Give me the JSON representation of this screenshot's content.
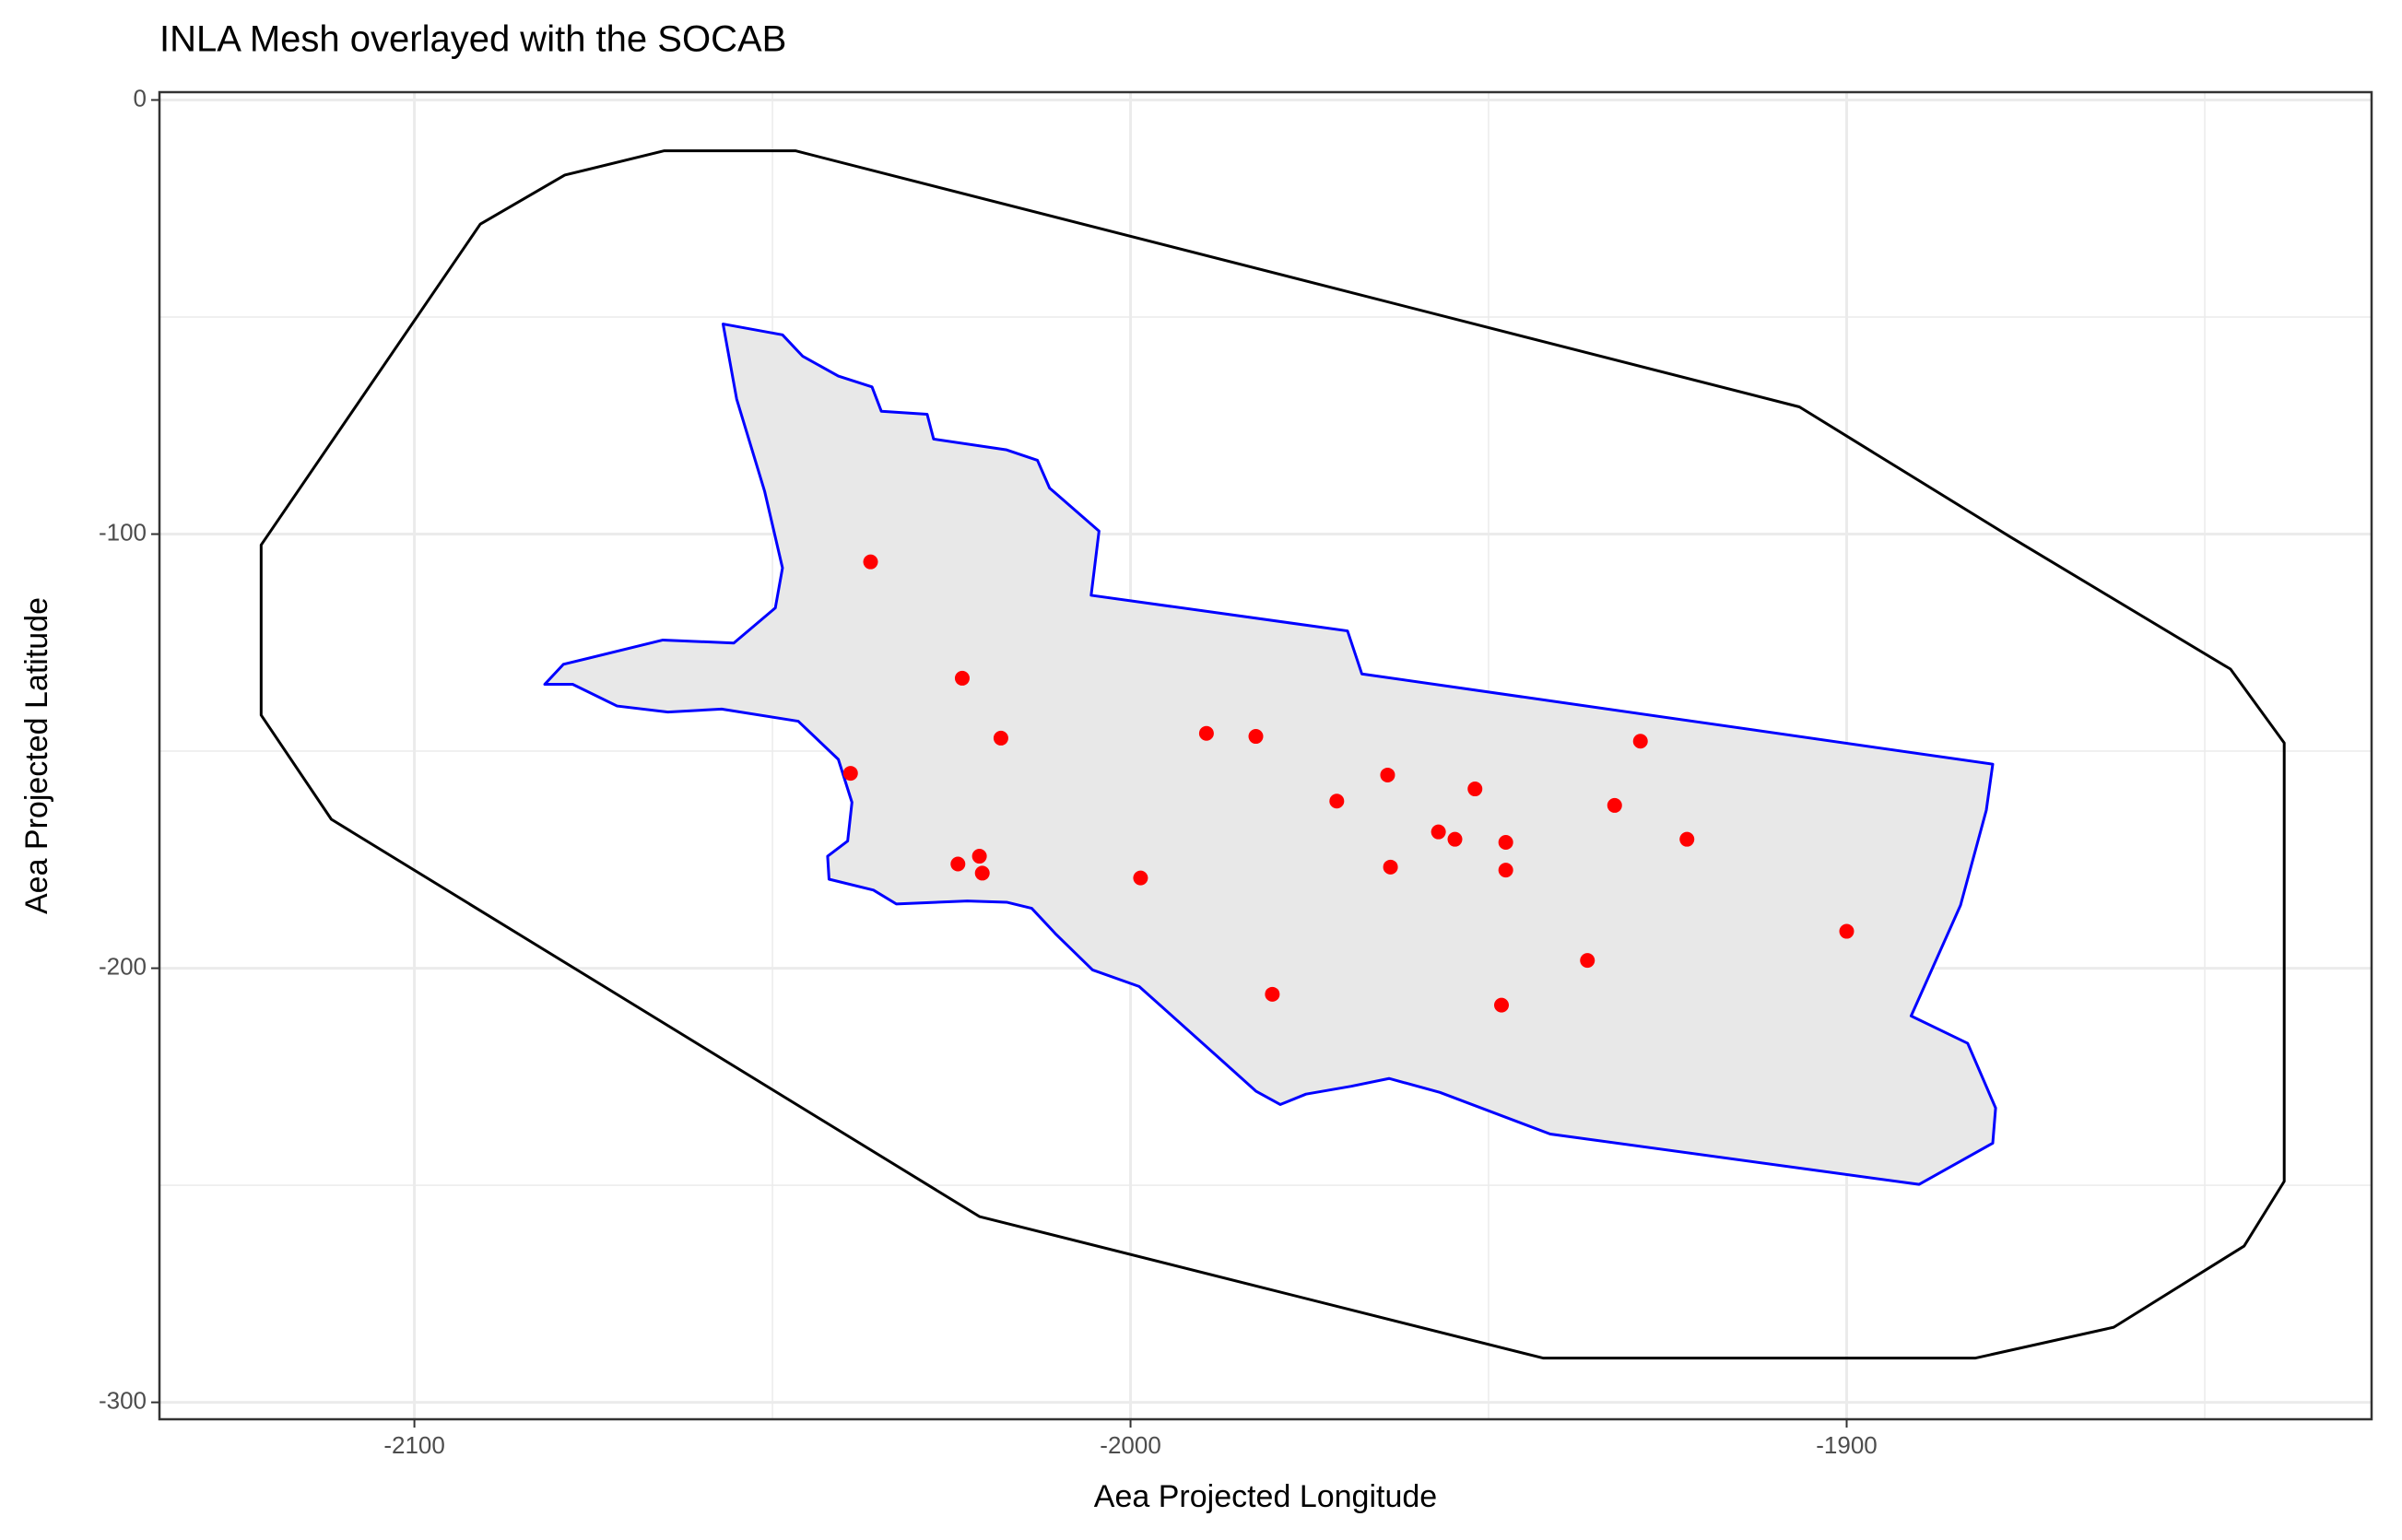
{
  "chart_data": {
    "type": "scatter",
    "title": "INLA Mesh overlayed with the SOCAB",
    "x_label": "Aea Projected Longitude",
    "y_label": "Aea Projected Latitude",
    "xlim": [
      -2135.6,
      -1826.7
    ],
    "ylim": [
      -303.9,
      1.8
    ],
    "xticks": [
      -2100,
      -2000,
      -1900
    ],
    "yticks": [
      0,
      -100,
      -200,
      -300
    ],
    "xminor": [
      -2050,
      -1950,
      -1850
    ],
    "yminor": [
      -50,
      -150,
      -250
    ],
    "grid": true,
    "color": "#ff0000",
    "x": [
      -2036.3,
      -2023.5,
      -2018.1,
      -2039.1,
      -1989.4,
      -1982.5,
      -1971.2,
      -1964.1,
      -1951.9,
      -1932.4,
      -1928.8,
      -1922.3,
      -1957.0,
      -1954.7,
      -1947.6,
      -1947.6,
      -1963.7,
      -2024.1,
      -2021.1,
      -2020.7,
      -1998.6,
      -1980.2,
      -1948.2,
      -1936.2,
      -1900.0
    ],
    "y": [
      -106.4,
      -133.2,
      -147.0,
      -155.1,
      -145.9,
      -146.6,
      -161.5,
      -155.5,
      -158.7,
      -162.5,
      -147.7,
      -170.3,
      -168.6,
      -170.3,
      -171.0,
      -177.4,
      -176.7,
      -176.0,
      -174.2,
      -178.1,
      -179.2,
      -206.0,
      -208.5,
      -198.2,
      -191.5
    ],
    "polygons": [
      {
        "color": "#000000",
        "x": [
          -2121.4,
          -2090.8,
          -2079.0,
          -2065.1,
          -2046.8,
          -1906.6,
          -1877.1,
          -1846.4,
          -1838.9,
          -1838.9,
          -1844.5,
          -1862.7,
          -1882.0,
          -1942.4,
          -2021.1,
          -2111.6,
          -2121.4
        ],
        "y": [
          -102.5,
          -28.6,
          -17.3,
          -11.7,
          -11.7,
          -70.7,
          -100.7,
          -131.1,
          -148.1,
          -249.1,
          -264.0,
          -282.7,
          -289.8,
          -289.8,
          -257.2,
          -165.7,
          -141.7
        ]
      },
      {
        "color": "#0000ff",
        "fill": "#e8e8e8",
        "x": [
          -2056.9,
          -2048.6,
          -2045.8,
          -2040.8,
          -2036.1,
          -2034.8,
          -2028.4,
          -2027.5,
          -2017.3,
          -2013.0,
          -2011.3,
          -2004.4,
          -2005.5,
          -1969.7,
          -1967.7,
          -1879.6,
          -1880.5,
          -1884.1,
          -1891.0,
          -1883.1,
          -1879.2,
          -1879.6,
          -1889.9,
          -1941.4,
          -1956.8,
          -1963.9,
          -1969.2,
          -1975.5,
          -1979.1,
          -1982.5,
          -1988.5,
          -1998.8,
          -2005.3,
          -2010.4,
          -2013.8,
          -2017.3,
          -2022.8,
          -2032.7,
          -2035.9,
          -2042.1,
          -2042.3,
          -2039.5,
          -2038.9,
          -2040.8,
          -2046.4,
          -2057.1,
          -2064.6,
          -2071.7,
          -2077.9,
          -2081.8,
          -2079.2,
          -2065.3,
          -2055.4,
          -2049.6,
          -2048.6,
          -2051.1,
          -2055.0
        ],
        "y": [
          -51.6,
          -54.1,
          -59.0,
          -63.6,
          -66.1,
          -71.7,
          -72.4,
          -78.1,
          -80.6,
          -83.0,
          -89.4,
          -99.3,
          -114.1,
          -122.3,
          -132.2,
          -153.0,
          -163.6,
          -185.5,
          -211.0,
          -217.3,
          -232.2,
          -240.3,
          -249.8,
          -238.2,
          -228.6,
          -225.4,
          -227.2,
          -229.0,
          -231.4,
          -228.3,
          -219.4,
          -204.2,
          -200.4,
          -192.2,
          -186.2,
          -184.8,
          -184.5,
          -185.2,
          -182.0,
          -179.5,
          -174.2,
          -170.7,
          -161.8,
          -151.9,
          -143.1,
          -140.3,
          -141.0,
          -139.6,
          -134.6,
          -134.6,
          -130.0,
          -124.4,
          -125.1,
          -117.0,
          -107.8,
          -90.1,
          -68.9
        ]
      }
    ]
  }
}
